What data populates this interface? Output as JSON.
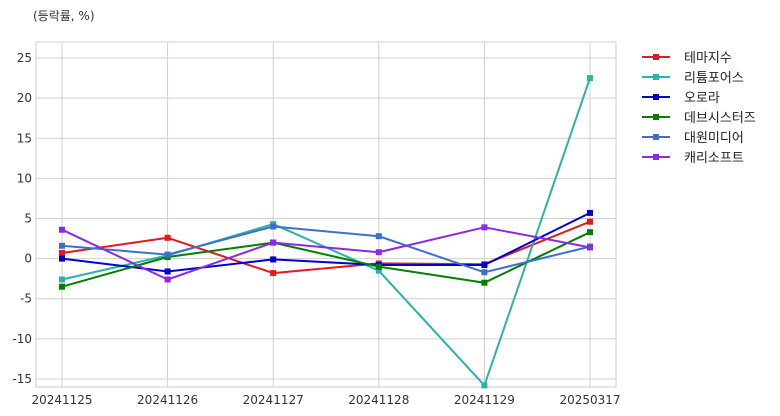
{
  "chart_data": {
    "type": "line",
    "unit_label": "(등락률, %)",
    "x": [
      "20241125",
      "20241126",
      "20241127",
      "20241128",
      "20241129",
      "20250317"
    ],
    "ylim": [
      -16,
      27
    ],
    "yticks": [
      -15,
      -10,
      -5,
      0,
      5,
      10,
      15,
      20,
      25
    ],
    "grid": true,
    "legend_position": "right",
    "series": [
      {
        "name": "테마지수",
        "color": "#e31a1c",
        "values": [
          0.7,
          2.6,
          -1.8,
          -0.6,
          -0.7,
          4.6
        ]
      },
      {
        "name": "리튬포어스",
        "color": "#2ab3a9",
        "values": [
          -2.6,
          0.4,
          4.3,
          -1.5,
          -15.8,
          22.5
        ]
      },
      {
        "name": "오로라",
        "color": "#0000cc",
        "values": [
          0.0,
          -1.6,
          -0.1,
          -0.8,
          -0.8,
          5.7
        ]
      },
      {
        "name": "데브시스터즈",
        "color": "#007f00",
        "values": [
          -3.5,
          0.2,
          2.0,
          -1.0,
          -3.0,
          3.3
        ]
      },
      {
        "name": "대원미디어",
        "color": "#3f6fce",
        "values": [
          1.6,
          0.5,
          4.0,
          2.8,
          -1.7,
          1.5
        ]
      },
      {
        "name": "캐리소프트",
        "color": "#8a2be2",
        "values": [
          3.6,
          -2.6,
          2.0,
          0.8,
          3.9,
          1.4
        ]
      }
    ]
  }
}
